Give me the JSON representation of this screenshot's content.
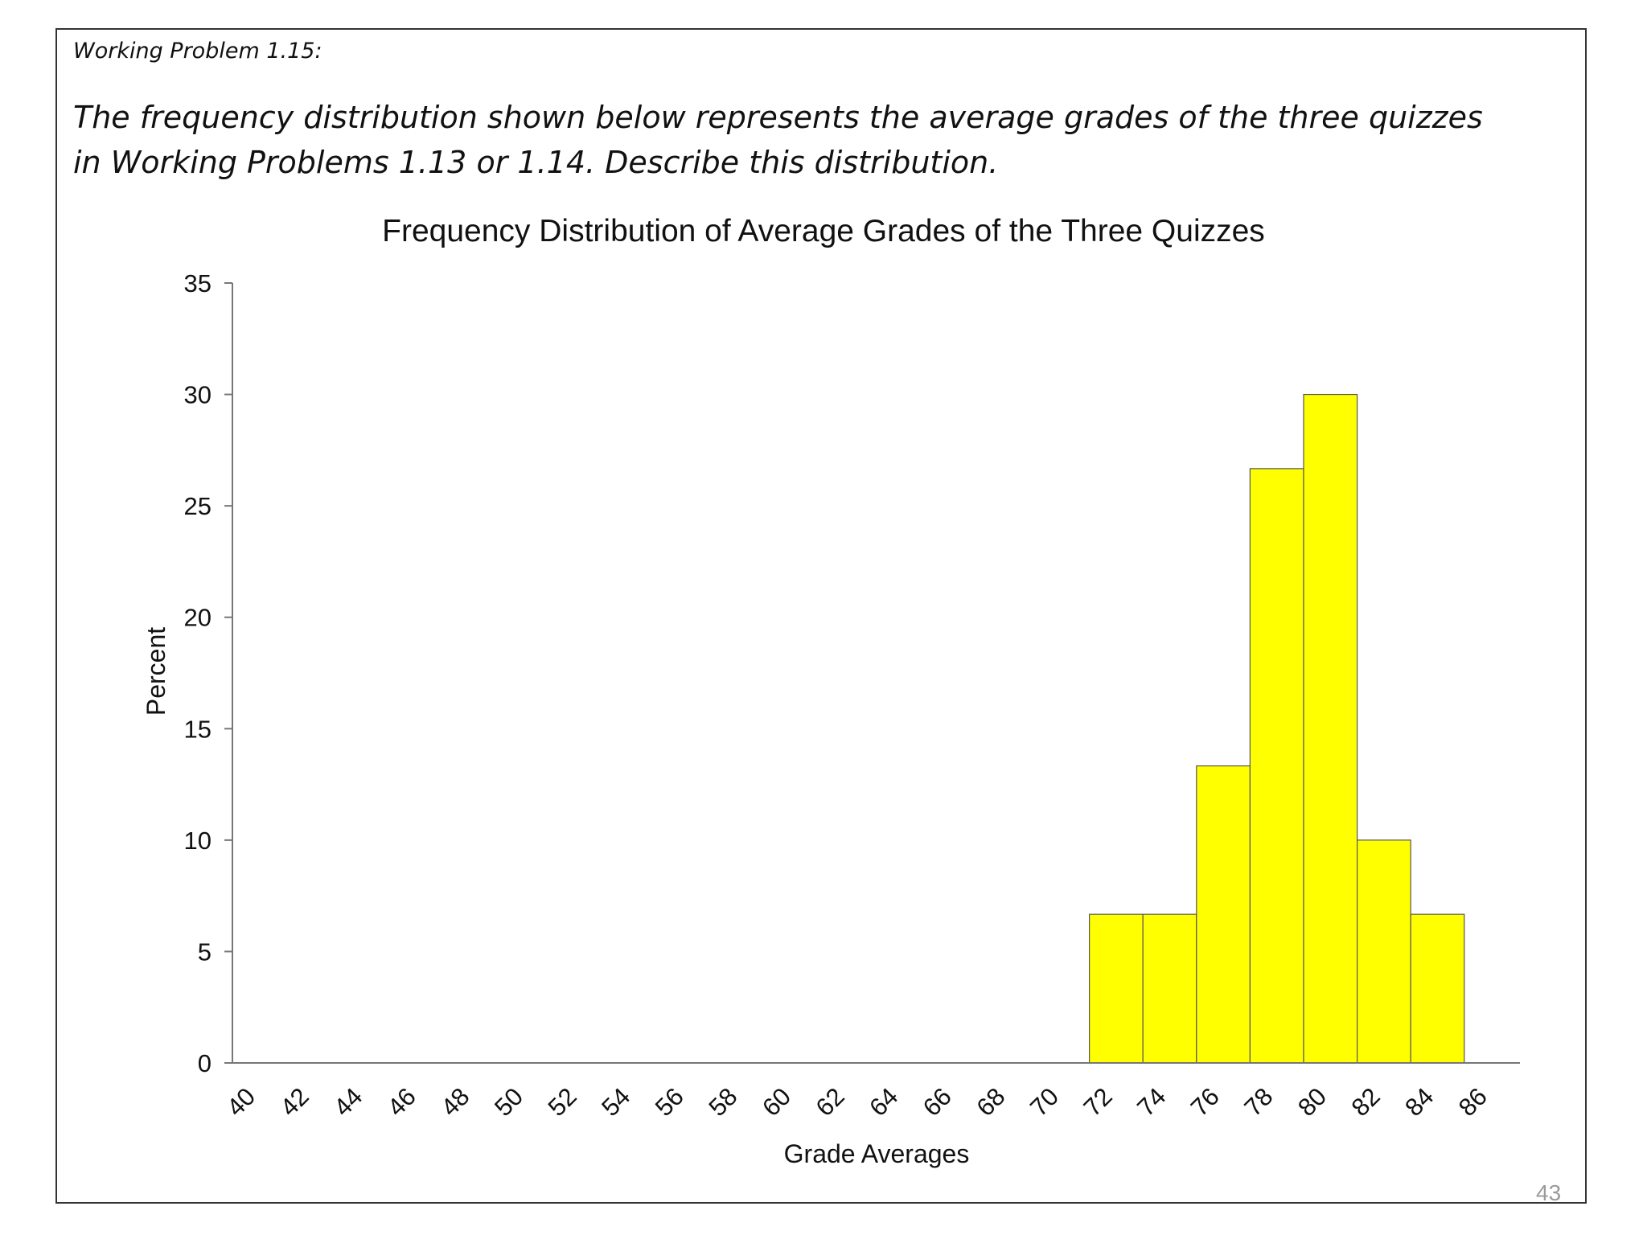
{
  "slide": {
    "problem_label": "Working Problem 1.15:",
    "problem_text": "The  frequency distribution shown below represents the average grades of the three quizzes in Working Problems 1.13 or 1.14. Describe this distribution.",
    "page_number": "43"
  },
  "chart_data": {
    "type": "bar",
    "title": "Frequency Distribution of Average Grades of the Three Quizzes",
    "xlabel": "Grade Averages",
    "ylabel": "Percent",
    "ylim": [
      0,
      35
    ],
    "yticks": [
      0,
      5,
      10,
      15,
      20,
      25,
      30,
      35
    ],
    "xticks": [
      "40",
      "42",
      "44",
      "46",
      "48",
      "50",
      "52",
      "54",
      "56",
      "58",
      "60",
      "62",
      "64",
      "66",
      "68",
      "70",
      "72",
      "74",
      "76",
      "78",
      "80",
      "82",
      "84",
      "86"
    ],
    "bins": [
      {
        "from": 72,
        "to": 74,
        "value": 6.67
      },
      {
        "from": 74,
        "to": 76,
        "value": 6.67
      },
      {
        "from": 76,
        "to": 78,
        "value": 13.33
      },
      {
        "from": 78,
        "to": 80,
        "value": 26.67
      },
      {
        "from": 80,
        "to": 82,
        "value": 30
      },
      {
        "from": 82,
        "to": 84,
        "value": 10
      },
      {
        "from": 84,
        "to": 86,
        "value": 6.67
      }
    ],
    "bar_color": "#ffff00",
    "grid": false,
    "legend": "none"
  }
}
